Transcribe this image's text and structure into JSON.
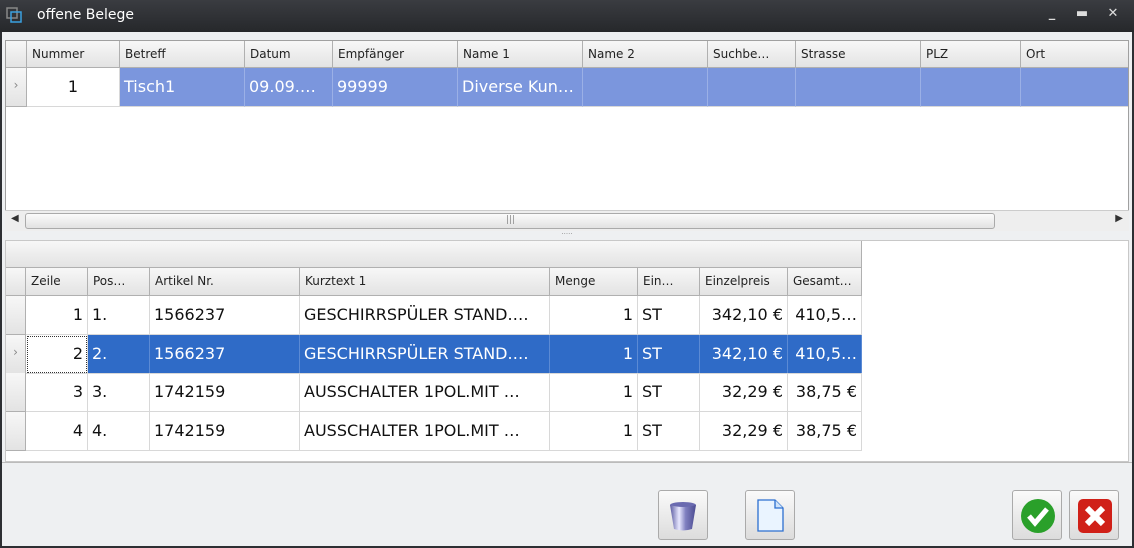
{
  "window": {
    "title": "offene Belege"
  },
  "top_grid": {
    "columns": [
      "Nummer",
      "Betreff",
      "Datum",
      "Empfänger",
      "Name 1",
      "Name 2",
      "Suchbe…",
      "Strasse",
      "PLZ",
      "Ort"
    ],
    "rows": [
      [
        "1",
        "Tisch1",
        "09.09.…",
        "99999",
        "Diverse Kun…",
        "",
        "",
        "",
        "",
        ""
      ]
    ]
  },
  "bottom_grid": {
    "columns": [
      "Zeile",
      "Pos…",
      "Artikel Nr.",
      "Kurztext 1",
      "Menge",
      "Ein…",
      "Einzelpreis",
      "Gesamt…"
    ],
    "rows": [
      [
        "1",
        "1.",
        "1566237",
        "GESCHIRRSPÜLER STAND.…",
        "1",
        "ST",
        "342,10 €",
        "410,5…"
      ],
      [
        "2",
        "2.",
        "1566237",
        "GESCHIRRSPÜLER STAND.…",
        "1",
        "ST",
        "342,10 €",
        "410,5…"
      ],
      [
        "3",
        "3.",
        "1742159",
        "AUSSCHALTER 1POL.MIT …",
        "1",
        "ST",
        "32,29 €",
        "38,75 €"
      ],
      [
        "4",
        "4.",
        "1742159",
        "AUSSCHALTER 1POL.MIT …",
        "1",
        "ST",
        "32,29 €",
        "38,75 €"
      ]
    ],
    "selected_row": 2
  },
  "buttons": [
    "delete",
    "new",
    "ok",
    "cancel"
  ]
}
